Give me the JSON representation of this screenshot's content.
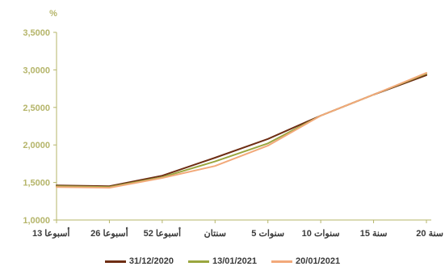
{
  "chart_data": {
    "type": "line",
    "ylabel": "%",
    "ylim": [
      1.0,
      3.5
    ],
    "y_ticks": [
      "1,0000",
      "1,5000",
      "2,0000",
      "2,5000",
      "3,0000",
      "3,5000"
    ],
    "y_tick_values": [
      1.0,
      1.5,
      2.0,
      2.5,
      3.0,
      3.5
    ],
    "categories": [
      "13 أسبوعا",
      "26 أسبوعا",
      "52 أسبوعا",
      "سنتان",
      "5 سنوات",
      "10 سنوات",
      "15 سنة",
      "20 سنة"
    ],
    "grid": false,
    "legend_placement": "bottom",
    "series": [
      {
        "name": "31/12/2020",
        "color": "#6e2e14",
        "values": [
          1.46,
          1.45,
          1.59,
          1.83,
          2.08,
          2.39,
          2.67,
          2.93
        ]
      },
      {
        "name": "13/01/2021",
        "color": "#9aa63f",
        "values": [
          1.45,
          1.44,
          1.57,
          1.78,
          2.02,
          2.39,
          2.67,
          2.95
        ]
      },
      {
        "name": "20/01/2021",
        "color": "#f2a97a",
        "values": [
          1.44,
          1.43,
          1.56,
          1.72,
          1.99,
          2.39,
          2.67,
          2.96
        ]
      }
    ],
    "axis_color": "#b5b56a",
    "tick_label_color": "#b5b56a",
    "category_label_color": "#3a3a3a"
  }
}
